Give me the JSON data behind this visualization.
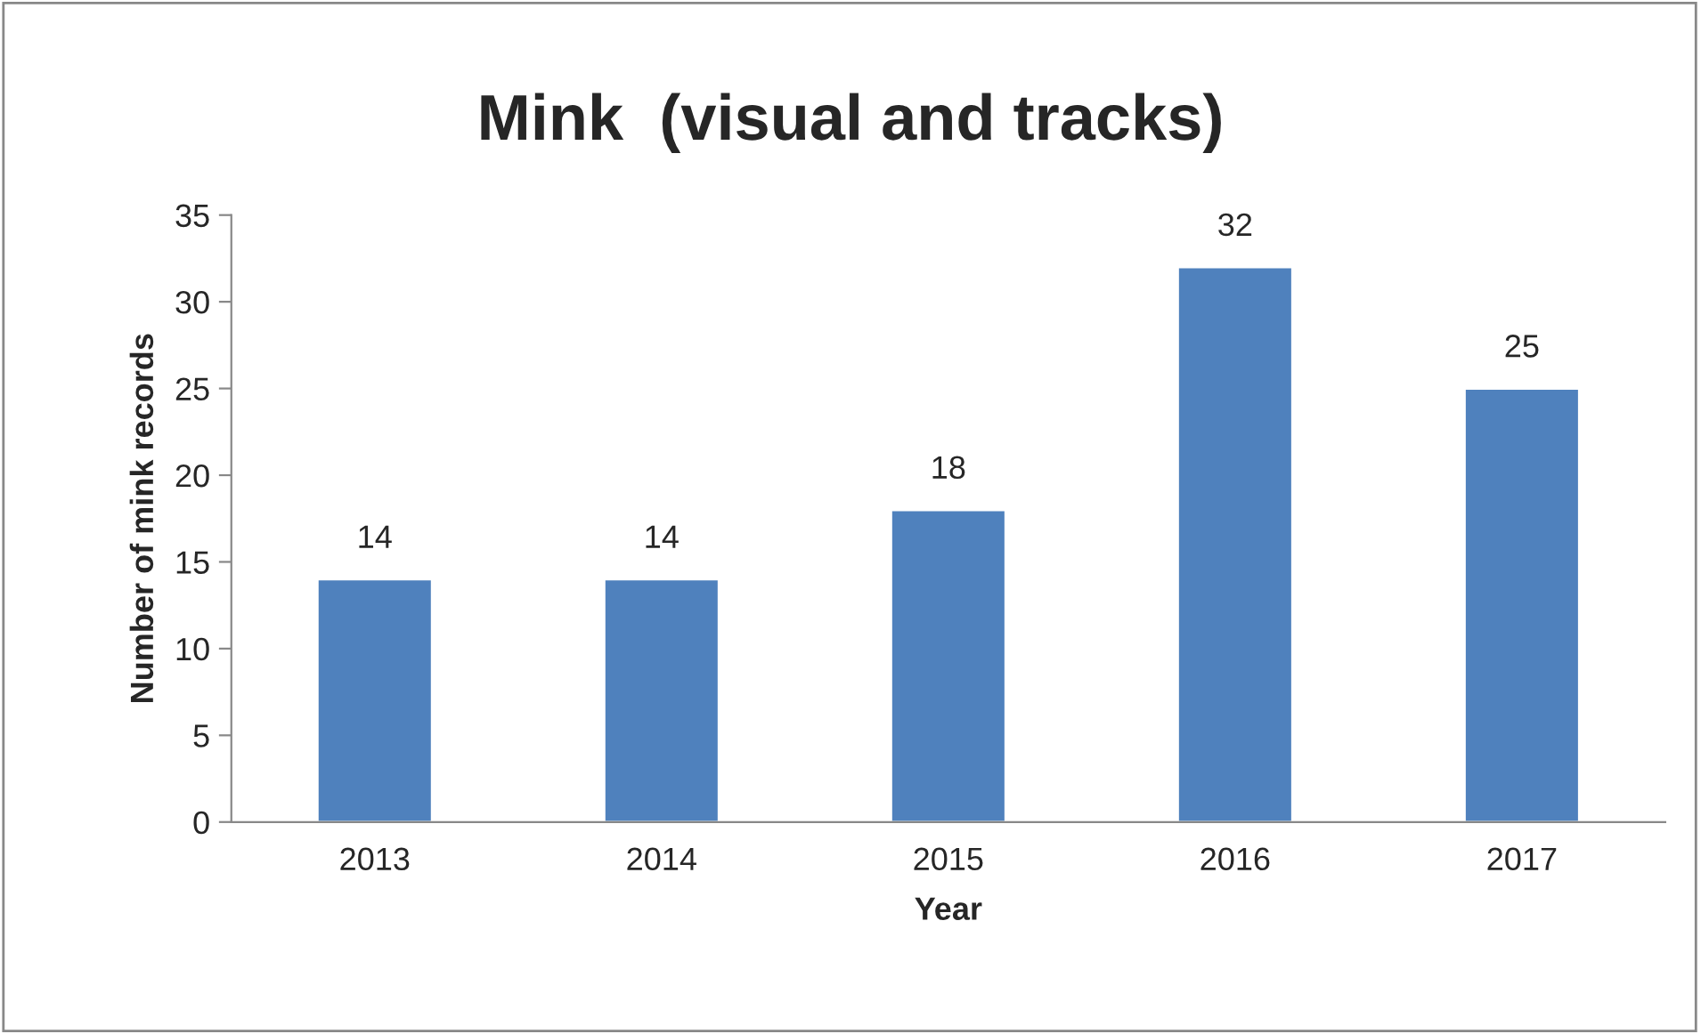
{
  "chart_data": {
    "type": "bar",
    "title": "Mink  (visual and tracks)",
    "xlabel": "Year",
    "ylabel": "Number of mink records",
    "categories": [
      "2013",
      "2014",
      "2015",
      "2016",
      "2017"
    ],
    "values": [
      14,
      14,
      18,
      32,
      25
    ],
    "color": "#4f81bd",
    "ylim": [
      0,
      35
    ],
    "yticks": [
      0,
      5,
      10,
      15,
      20,
      25,
      30,
      35
    ],
    "grid": false,
    "data_labels": true
  }
}
